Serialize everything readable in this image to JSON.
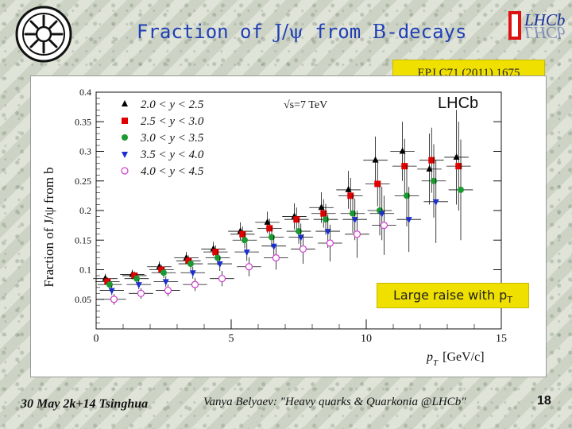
{
  "slide": {
    "title_prefix": "Fraction of ",
    "title_symbol": "J/ψ",
    "title_middle": " from ",
    "title_b": "B",
    "title_suffix": "-decays",
    "reference": "EPJ C71 (2011) 1675",
    "annotation_text": "Large raise with p",
    "annotation_sub": "T",
    "footer_date": "30 May 2k+14 Tsinghua",
    "footer_author": "Vanya Belyaev: \"Heavy quarks & Quarkonia @LHCb\"",
    "page_number": "18",
    "logo_right_text": "LHCb"
  },
  "chart_data": {
    "type": "scatter",
    "ylabel": "Fraction of J/ψ from b",
    "xlabel": "p_T [GeV/c]",
    "xlabel_main": "p",
    "xlabel_sub": "T",
    "xlabel_unit": "[GeV/c]",
    "plot_label": "√s=7 TeV",
    "experiment_label": "LHCb",
    "xlim": [
      0,
      15
    ],
    "ylim": [
      0,
      0.4
    ],
    "xticks": [
      "0",
      "5",
      "10",
      "15"
    ],
    "yticks": [
      "0.05",
      "0.1",
      "0.15",
      "0.2",
      "0.25",
      "0.3",
      "0.35",
      "0.4"
    ],
    "legend_position": "top-left",
    "series": [
      {
        "name": "2.0 < y < 2.5",
        "marker": "triangle-up",
        "color": "#000000",
        "x": [
          0.5,
          1.5,
          2.5,
          3.5,
          4.5,
          5.5,
          6.5,
          7.5,
          8.5,
          9.5,
          10.5,
          11.5,
          12.5,
          13.5
        ],
        "y": [
          0.085,
          0.092,
          0.105,
          0.12,
          0.135,
          0.165,
          0.18,
          0.19,
          0.205,
          0.235,
          0.285,
          0.3,
          0.27,
          0.29
        ],
        "yerr": [
          0.008,
          0.008,
          0.009,
          0.01,
          0.012,
          0.015,
          0.018,
          0.022,
          0.026,
          0.032,
          0.04,
          0.05,
          0.06,
          0.08
        ]
      },
      {
        "name": "2.5 < y < 3.0",
        "marker": "square",
        "color": "#e00000",
        "x": [
          0.5,
          1.5,
          2.5,
          3.5,
          4.5,
          5.5,
          6.5,
          7.5,
          8.5,
          9.5,
          10.5,
          11.5,
          12.5,
          13.5
        ],
        "y": [
          0.08,
          0.09,
          0.1,
          0.115,
          0.13,
          0.16,
          0.17,
          0.185,
          0.195,
          0.225,
          0.245,
          0.275,
          0.285,
          0.275
        ],
        "yerr": [
          0.007,
          0.007,
          0.008,
          0.009,
          0.011,
          0.013,
          0.016,
          0.02,
          0.024,
          0.03,
          0.038,
          0.046,
          0.055,
          0.075
        ]
      },
      {
        "name": "3.0 < y < 3.5",
        "marker": "circle",
        "color": "#1a9a30",
        "x": [
          0.5,
          1.5,
          2.5,
          3.5,
          4.5,
          5.5,
          6.5,
          7.5,
          8.5,
          9.5,
          10.5,
          11.5,
          12.5,
          13.5
        ],
        "y": [
          0.075,
          0.085,
          0.095,
          0.11,
          0.12,
          0.15,
          0.155,
          0.165,
          0.185,
          0.195,
          0.2,
          0.225,
          0.25,
          0.235
        ],
        "yerr": [
          0.008,
          0.008,
          0.009,
          0.01,
          0.012,
          0.014,
          0.017,
          0.021,
          0.026,
          0.033,
          0.042,
          0.052,
          0.062,
          0.085
        ]
      },
      {
        "name": "3.5 < y < 4.0",
        "marker": "triangle-down",
        "color": "#1a2fd0",
        "x": [
          0.5,
          1.5,
          2.5,
          3.5,
          4.5,
          5.5,
          6.5,
          7.5,
          8.5,
          9.5,
          10.5,
          11.5,
          12.5
        ],
        "y": [
          0.065,
          0.075,
          0.08,
          0.095,
          0.11,
          0.13,
          0.14,
          0.155,
          0.165,
          0.185,
          0.195,
          0.185,
          0.215
        ],
        "yerr": [
          0.008,
          0.008,
          0.009,
          0.01,
          0.012,
          0.015,
          0.018,
          0.023,
          0.028,
          0.035,
          0.045,
          0.055,
          0.07
        ]
      },
      {
        "name": "4.0 < y < 4.5",
        "marker": "circle-open",
        "color": "#d03ad0",
        "x": [
          0.5,
          1.5,
          2.5,
          3.5,
          4.5,
          5.5,
          6.5,
          7.5,
          8.5,
          9.5,
          10.5
        ],
        "y": [
          0.05,
          0.06,
          0.065,
          0.075,
          0.085,
          0.105,
          0.12,
          0.135,
          0.145,
          0.16,
          0.175
        ],
        "yerr": [
          0.009,
          0.009,
          0.01,
          0.011,
          0.013,
          0.016,
          0.02,
          0.025,
          0.031,
          0.04,
          0.05
        ]
      }
    ]
  }
}
